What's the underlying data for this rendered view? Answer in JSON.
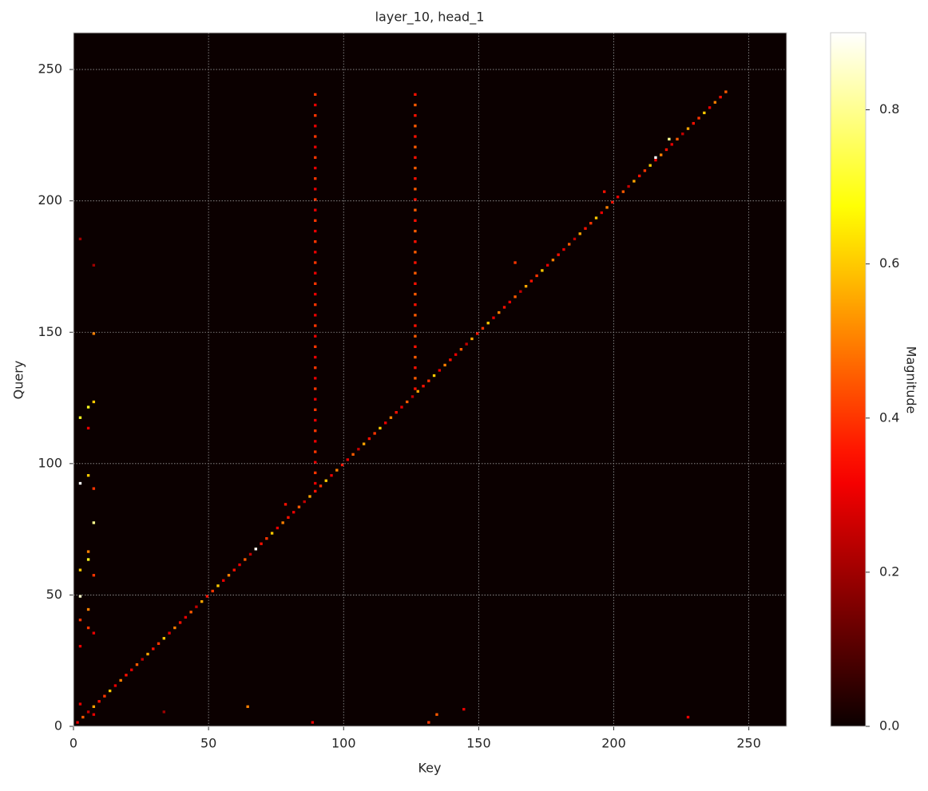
{
  "chart_data": {
    "type": "heatmap",
    "title": "layer_10, head_1",
    "x_label": "Key",
    "y_label": "Query",
    "xlim": [
      0,
      264
    ],
    "ylim": [
      0,
      264
    ],
    "xticks": [
      0,
      50,
      100,
      150,
      200,
      250
    ],
    "yticks": [
      0,
      50,
      100,
      150,
      200,
      250
    ],
    "grid": true,
    "colormap": "hot",
    "colorbar": {
      "label": "Magnitude",
      "clim": [
        0,
        0.9
      ],
      "ticks": [
        {
          "value": 0,
          "label": "0.0"
        },
        0.2,
        0.4,
        0.6,
        0.8
      ]
    },
    "x": [
      1,
      3,
      5,
      7,
      9,
      11,
      13,
      15,
      17,
      19,
      21,
      23,
      25,
      27,
      29,
      31,
      33,
      35,
      37,
      39,
      41,
      43,
      45,
      47,
      49,
      51,
      53,
      55,
      57,
      59,
      61,
      63,
      65,
      67,
      69,
      71,
      73,
      75,
      77,
      79,
      81,
      83,
      85,
      87,
      89,
      91,
      93,
      95,
      97,
      99,
      101,
      103,
      105,
      107,
      109,
      111,
      113,
      115,
      117,
      119,
      121,
      123,
      125,
      127,
      129,
      131,
      133,
      135,
      137,
      139,
      141,
      143,
      145,
      147,
      149,
      151,
      153,
      155,
      157,
      159,
      161,
      163,
      165,
      167,
      169,
      171,
      173,
      175,
      177,
      179,
      181,
      183,
      185,
      187,
      189,
      191,
      193,
      195,
      197,
      199,
      201,
      203,
      205,
      207,
      209,
      211,
      213,
      215,
      217,
      219,
      221,
      223,
      225,
      227,
      229,
      231,
      233,
      235,
      237,
      239,
      241,
      89,
      89,
      89,
      89,
      89,
      89,
      89,
      89,
      89,
      89,
      89,
      89,
      89,
      89,
      89,
      89,
      89,
      89,
      89,
      89,
      89,
      89,
      89,
      89,
      89,
      89,
      89,
      89,
      89,
      89,
      89,
      89,
      89,
      89,
      89,
      89,
      89,
      89,
      126,
      126,
      126,
      126,
      126,
      126,
      126,
      126,
      126,
      126,
      126,
      126,
      126,
      126,
      126,
      126,
      126,
      126,
      126,
      126,
      126,
      126,
      126,
      126,
      126,
      126,
      126,
      126,
      126,
      2,
      2,
      2,
      2,
      2,
      2,
      2,
      5,
      5,
      5,
      5,
      5,
      5,
      7,
      7,
      7,
      7,
      7,
      7,
      7,
      7,
      2,
      5,
      131,
      134,
      88,
      64,
      144,
      227,
      33,
      67,
      215,
      220,
      163,
      196,
      78
    ],
    "y": [
      1,
      3,
      5,
      7,
      9,
      11,
      13,
      15,
      17,
      19,
      21,
      23,
      25,
      27,
      29,
      31,
      33,
      35,
      37,
      39,
      41,
      43,
      45,
      47,
      49,
      51,
      53,
      55,
      57,
      59,
      61,
      63,
      65,
      67,
      69,
      71,
      73,
      75,
      77,
      79,
      81,
      83,
      85,
      87,
      89,
      91,
      93,
      95,
      97,
      99,
      101,
      103,
      105,
      107,
      109,
      111,
      113,
      115,
      117,
      119,
      121,
      123,
      125,
      127,
      129,
      131,
      133,
      135,
      137,
      139,
      141,
      143,
      145,
      147,
      149,
      151,
      153,
      155,
      157,
      159,
      161,
      163,
      165,
      167,
      169,
      171,
      173,
      175,
      177,
      179,
      181,
      183,
      185,
      187,
      189,
      191,
      193,
      195,
      197,
      199,
      201,
      203,
      205,
      207,
      209,
      211,
      213,
      215,
      217,
      219,
      221,
      223,
      225,
      227,
      229,
      231,
      233,
      235,
      237,
      239,
      241,
      92,
      96,
      100,
      104,
      108,
      112,
      116,
      120,
      124,
      128,
      132,
      136,
      140,
      144,
      148,
      152,
      156,
      160,
      164,
      168,
      172,
      176,
      180,
      184,
      188,
      192,
      196,
      200,
      204,
      208,
      212,
      216,
      220,
      224,
      228,
      232,
      236,
      240,
      128,
      132,
      136,
      140,
      144,
      148,
      152,
      156,
      160,
      164,
      168,
      172,
      176,
      180,
      184,
      188,
      192,
      196,
      200,
      204,
      208,
      212,
      216,
      220,
      224,
      228,
      232,
      236,
      240,
      117,
      92,
      49,
      59,
      40,
      30,
      8,
      121,
      95,
      63,
      44,
      37,
      66,
      123,
      149,
      90,
      77,
      57,
      35,
      4,
      175,
      185,
      113,
      1,
      4,
      1,
      7,
      6,
      3,
      5,
      67,
      216,
      223,
      176,
      203,
      84
    ],
    "values": [
      0.3,
      0.45,
      0.25,
      0.55,
      0.35,
      0.4,
      0.6,
      0.3,
      0.5,
      0.35,
      0.3,
      0.45,
      0.25,
      0.55,
      0.35,
      0.4,
      0.6,
      0.3,
      0.5,
      0.35,
      0.3,
      0.45,
      0.25,
      0.55,
      0.35,
      0.4,
      0.6,
      0.3,
      0.5,
      0.35,
      0.3,
      0.45,
      0.25,
      0.55,
      0.35,
      0.4,
      0.6,
      0.3,
      0.5,
      0.35,
      0.3,
      0.45,
      0.25,
      0.55,
      0.35,
      0.4,
      0.6,
      0.3,
      0.5,
      0.35,
      0.3,
      0.45,
      0.25,
      0.55,
      0.35,
      0.4,
      0.6,
      0.3,
      0.5,
      0.35,
      0.3,
      0.45,
      0.25,
      0.55,
      0.35,
      0.4,
      0.6,
      0.3,
      0.5,
      0.35,
      0.3,
      0.45,
      0.25,
      0.55,
      0.35,
      0.4,
      0.6,
      0.3,
      0.5,
      0.35,
      0.3,
      0.45,
      0.25,
      0.55,
      0.35,
      0.4,
      0.6,
      0.3,
      0.5,
      0.35,
      0.3,
      0.45,
      0.25,
      0.55,
      0.35,
      0.4,
      0.6,
      0.3,
      0.5,
      0.35,
      0.3,
      0.45,
      0.25,
      0.55,
      0.35,
      0.4,
      0.6,
      0.3,
      0.5,
      0.35,
      0.3,
      0.45,
      0.25,
      0.55,
      0.35,
      0.4,
      0.6,
      0.3,
      0.5,
      0.35,
      0.45,
      0.3,
      0.4,
      0.3,
      0.4,
      0.3,
      0.4,
      0.3,
      0.4,
      0.3,
      0.4,
      0.3,
      0.4,
      0.3,
      0.4,
      0.3,
      0.4,
      0.3,
      0.4,
      0.3,
      0.4,
      0.3,
      0.4,
      0.3,
      0.4,
      0.3,
      0.4,
      0.3,
      0.4,
      0.3,
      0.4,
      0.3,
      0.4,
      0.3,
      0.4,
      0.3,
      0.4,
      0.3,
      0.4,
      0.35,
      0.45,
      0.35,
      0.45,
      0.35,
      0.45,
      0.35,
      0.45,
      0.35,
      0.45,
      0.35,
      0.45,
      0.35,
      0.45,
      0.35,
      0.45,
      0.35,
      0.45,
      0.35,
      0.45,
      0.35,
      0.45,
      0.35,
      0.45,
      0.35,
      0.45,
      0.35,
      0.45,
      0.35,
      0.7,
      0.9,
      0.85,
      0.6,
      0.4,
      0.3,
      0.3,
      0.7,
      0.6,
      0.7,
      0.5,
      0.4,
      0.5,
      0.6,
      0.5,
      0.4,
      0.8,
      0.4,
      0.3,
      0.3,
      0.2,
      0.2,
      0.3,
      0.4,
      0.45,
      0.3,
      0.5,
      0.3,
      0.3,
      0.2,
      0.9,
      0.9,
      0.8,
      0.4,
      0.35,
      0.35
    ]
  }
}
